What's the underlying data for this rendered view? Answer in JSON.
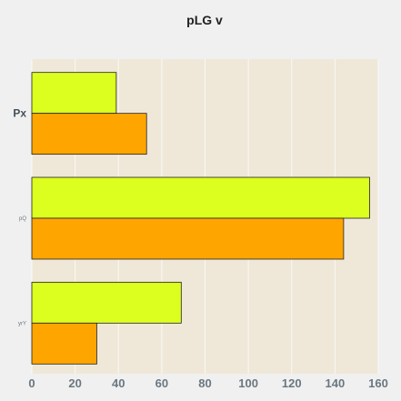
{
  "chart_data": {
    "type": "bar",
    "orientation": "horizontal",
    "title": "pLG v",
    "xlabel": "",
    "ylabel": "",
    "categories": [
      "Px",
      "pQ",
      "yrY"
    ],
    "series": [
      {
        "values": [
          39,
          156,
          69
        ],
        "color": "#ddff1f"
      },
      {
        "values": [
          53,
          144,
          30
        ],
        "color": "#ffa500"
      }
    ],
    "xlim": [
      0,
      160
    ],
    "xticks": [
      0,
      20,
      40,
      60,
      80,
      100,
      120,
      140,
      160
    ],
    "grid": true,
    "legend": "none",
    "plot_background": "#efe8d8",
    "bar_edge_color": "#222222"
  }
}
